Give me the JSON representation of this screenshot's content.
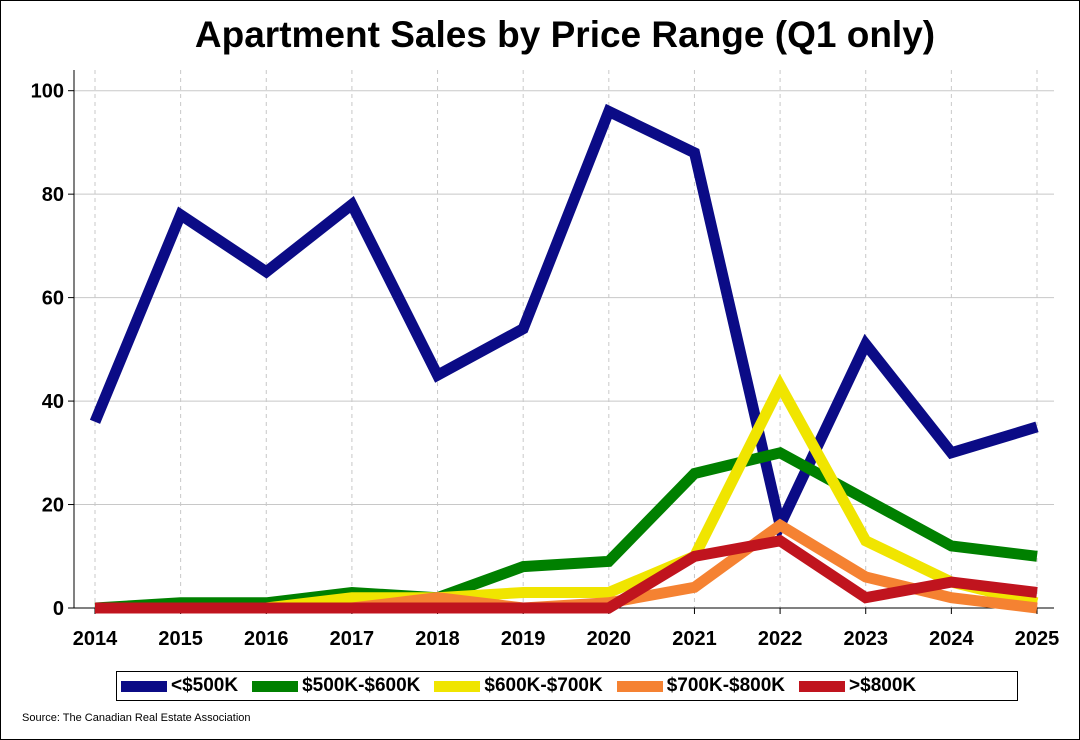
{
  "chart_data": {
    "type": "line",
    "title": "Apartment Sales by Price Range (Q1 only)",
    "x": [
      "2014",
      "2015",
      "2016",
      "2017",
      "2018",
      "2019",
      "2020",
      "2021",
      "2022",
      "2023",
      "2024",
      "2025"
    ],
    "ylim": [
      0,
      104
    ],
    "yticks": [
      0,
      20,
      40,
      60,
      80,
      100
    ],
    "grid": true,
    "legend_position": "bottom",
    "series": [
      {
        "name": "<$500K",
        "color": "#0B0B86",
        "values": [
          36,
          76,
          65,
          78,
          45,
          54,
          96,
          88,
          16,
          51,
          30,
          35
        ]
      },
      {
        "name": "$500K-$600K",
        "color": "#008000",
        "values": [
          0,
          1,
          1,
          3,
          2,
          8,
          9,
          26,
          30,
          21,
          12,
          10
        ]
      },
      {
        "name": "$600K-$700K",
        "color": "#F0E500",
        "values": [
          0,
          0,
          0,
          2,
          2,
          3,
          3,
          10,
          43,
          13,
          5,
          1
        ]
      },
      {
        "name": "$700K-$800K",
        "color": "#F58232",
        "values": [
          0,
          0,
          0,
          0,
          2,
          0,
          1,
          4,
          16,
          6,
          2,
          0
        ]
      },
      {
        "name": ">$800K",
        "color": "#C0141E",
        "values": [
          0,
          0,
          0,
          0,
          0,
          0,
          0,
          10,
          13,
          2,
          5,
          3
        ]
      }
    ]
  },
  "source": "Source: The Canadian Real Estate Association"
}
